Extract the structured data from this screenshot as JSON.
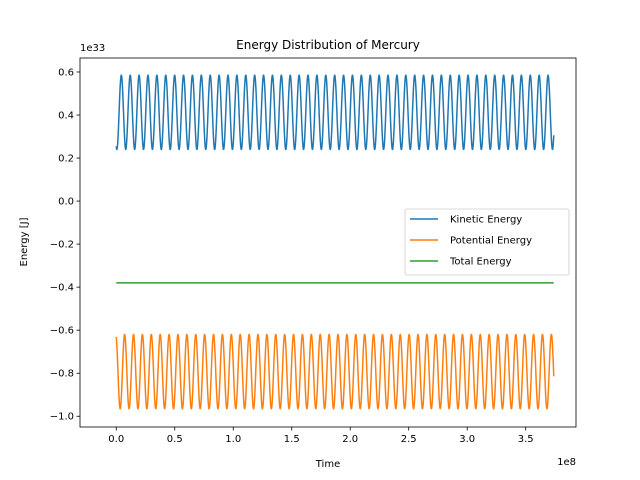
{
  "chart_data": {
    "type": "line",
    "title": "Energy Distribution of Mercury",
    "xlabel": "Time",
    "ylabel": "Energy [J]",
    "x_offset_label": "1e8",
    "y_offset_label": "1e33",
    "xlim": [
      -31000000.0,
      393000000.0
    ],
    "ylim": [
      -1.05e+33,
      6.65e+32
    ],
    "x_ticks": [
      0,
      50000000.0,
      100000000.0,
      150000000.0,
      200000000.0,
      250000000.0,
      300000000.0,
      350000000.0
    ],
    "x_tick_labels": [
      "0.0",
      "0.5",
      "1.0",
      "1.5",
      "2.0",
      "2.5",
      "3.0",
      "3.5"
    ],
    "y_ticks": [
      6e+32,
      4e+32,
      2e+32,
      0,
      -2e+32,
      -4e+32,
      -6e+32,
      -8e+32,
      -1e+33
    ],
    "y_tick_labels": [
      "0.6",
      "0.4",
      "0.2",
      "0.0",
      "−0.2",
      "−0.4",
      "−0.6",
      "−0.8",
      "−1.0"
    ],
    "period": 7600000.0,
    "x_range": [
      0,
      374000000.0
    ],
    "legend_position": "center-right",
    "series": [
      {
        "name": "Kinetic Energy",
        "color": "#1f77b4",
        "min": 2.4e+32,
        "max": 5.85e+32,
        "start": 2.55e+32
      },
      {
        "name": "Potential Energy",
        "color": "#ff7f0e",
        "min": -9.65e+32,
        "max": -6.2e+32,
        "start": -6.32e+32
      },
      {
        "name": "Total Energy",
        "color": "#2ca02c",
        "constant": -3.8e+32
      }
    ]
  }
}
